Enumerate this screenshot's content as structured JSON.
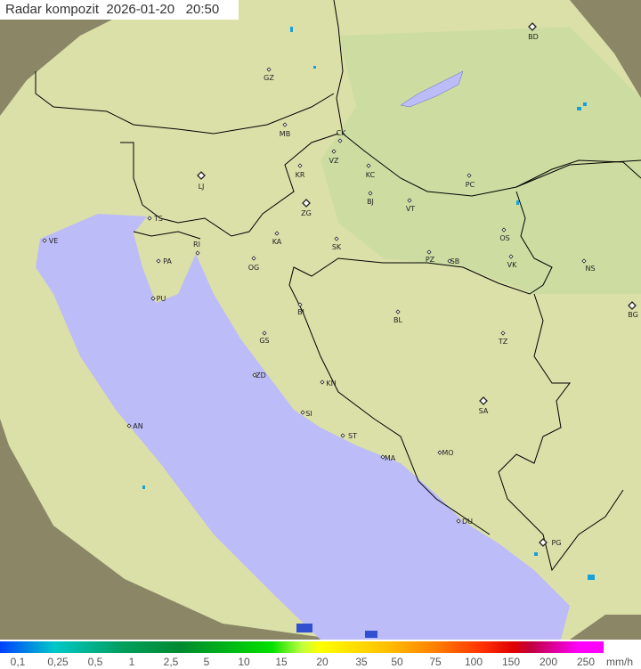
{
  "header": {
    "title": "Radar kompozit",
    "date": "2026-01-20",
    "time": "20:50"
  },
  "legend": {
    "labels": [
      "0,1",
      "0,25",
      "0,5",
      "1",
      "2,5",
      "5",
      "10",
      "15",
      "20",
      "35",
      "50",
      "75",
      "100",
      "150",
      "200",
      "250"
    ],
    "unit": "mm/h"
  },
  "map": {
    "colors": {
      "land": "#dbe0a8",
      "sea": "#bcbcf8",
      "outside_coverage": "#8a8666",
      "border": "#000000",
      "precip_light": "#1aa0d8"
    },
    "cities": [
      {
        "code": "GZ",
        "capital": false
      },
      {
        "code": "BD",
        "capital": true
      },
      {
        "code": "MB",
        "capital": false
      },
      {
        "code": "CK",
        "capital": false
      },
      {
        "code": "VZ",
        "capital": false
      },
      {
        "code": "KR",
        "capital": false
      },
      {
        "code": "KC",
        "capital": false
      },
      {
        "code": "PC",
        "capital": false
      },
      {
        "code": "LJ",
        "capital": true
      },
      {
        "code": "ZG",
        "capital": true
      },
      {
        "code": "BJ",
        "capital": false
      },
      {
        "code": "VT",
        "capital": false
      },
      {
        "code": "TS",
        "capital": false
      },
      {
        "code": "VE",
        "capital": false
      },
      {
        "code": "RI",
        "capital": false
      },
      {
        "code": "KA",
        "capital": false
      },
      {
        "code": "SK",
        "capital": false
      },
      {
        "code": "OS",
        "capital": false
      },
      {
        "code": "PZ",
        "capital": false
      },
      {
        "code": "SB",
        "capital": false
      },
      {
        "code": "VK",
        "capital": false
      },
      {
        "code": "NS",
        "capital": false
      },
      {
        "code": "PA",
        "capital": false
      },
      {
        "code": "OG",
        "capital": false
      },
      {
        "code": "PU",
        "capital": false
      },
      {
        "code": "BG",
        "capital": true
      },
      {
        "code": "BI",
        "capital": false
      },
      {
        "code": "BL",
        "capital": false
      },
      {
        "code": "TZ",
        "capital": false
      },
      {
        "code": "GS",
        "capital": false
      },
      {
        "code": "ZD",
        "capital": false
      },
      {
        "code": "KN",
        "capital": false
      },
      {
        "code": "SA",
        "capital": true
      },
      {
        "code": "AN",
        "capital": false
      },
      {
        "code": "SI",
        "capital": false
      },
      {
        "code": "ST",
        "capital": false
      },
      {
        "code": "MO",
        "capital": false
      },
      {
        "code": "MA",
        "capital": false
      },
      {
        "code": "DU",
        "capital": false
      },
      {
        "code": "PG",
        "capital": true
      }
    ]
  }
}
